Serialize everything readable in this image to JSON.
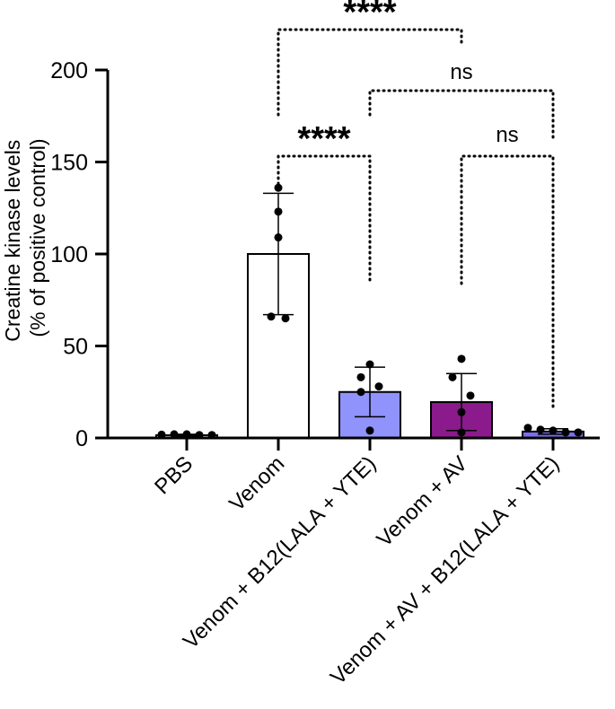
{
  "chart_data": {
    "type": "bar",
    "ylabel_line1": "Creatine kinase levels",
    "ylabel_line2": "(% of positive control)",
    "ylim": [
      0,
      200
    ],
    "yticks": [
      "0",
      "50",
      "100",
      "150",
      "200"
    ],
    "categories": [
      "PBS",
      "Venom",
      "Venom + B12(LALA + YTE)",
      "Venom + AV",
      "Venom + AV + B12(LALA + YTE)"
    ],
    "means": [
      1.5,
      100,
      25,
      19.5,
      3.5
    ],
    "sd": [
      0.5,
      33,
      13.5,
      15.5,
      1.5
    ],
    "points": [
      [
        1.8,
        2.0,
        2.0,
        1.6,
        1.6
      ],
      [
        136,
        123,
        109,
        66,
        65
      ],
      [
        40,
        33,
        28,
        25,
        4
      ],
      [
        43,
        33,
        23,
        14,
        3
      ],
      [
        5.5,
        4.5,
        4,
        3,
        3
      ]
    ],
    "colors": [
      "#ffffff",
      "#ffffff",
      "#8f93fb",
      "#8b1a8c",
      "#7b6ef0"
    ],
    "comparisons": [
      {
        "from": 1,
        "to": 3,
        "label": "****"
      },
      {
        "from": 2,
        "to": 4,
        "label": "ns"
      },
      {
        "from": 1,
        "to": 2,
        "label": "****"
      },
      {
        "from": 3,
        "to": 4,
        "label": "ns"
      }
    ]
  }
}
